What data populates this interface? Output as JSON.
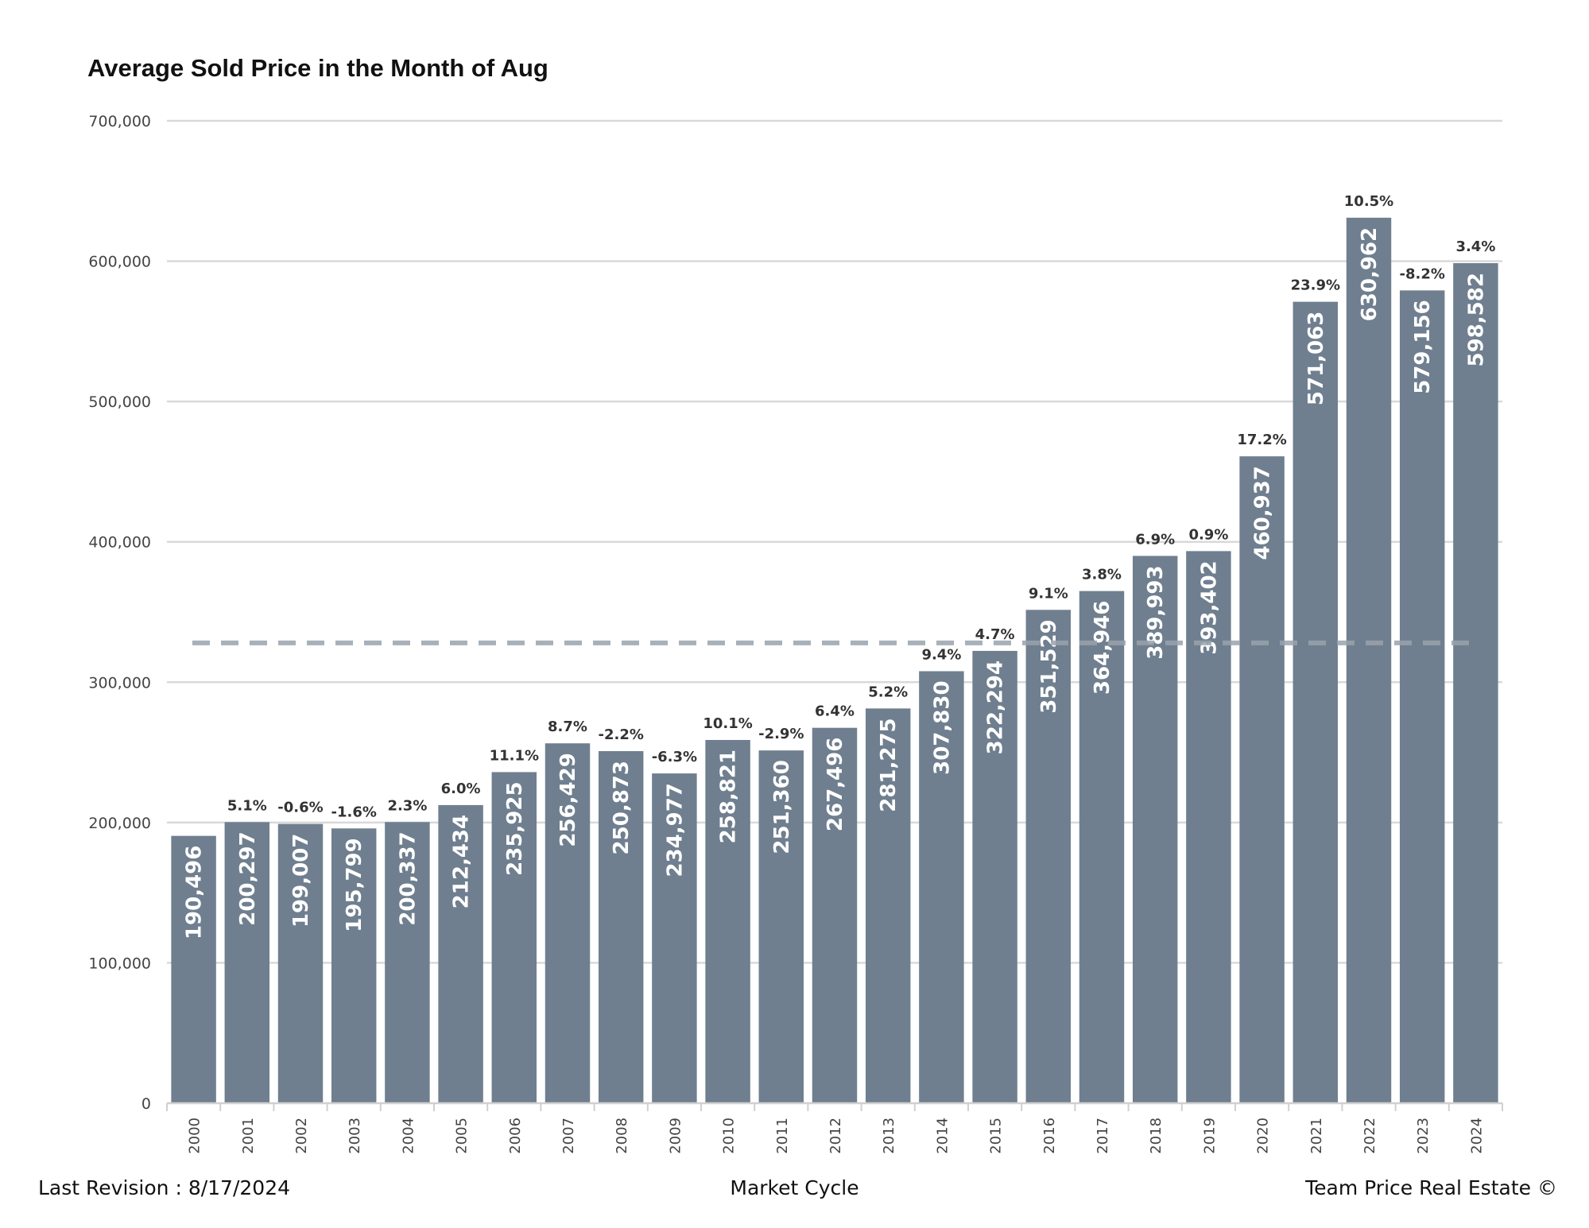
{
  "chart_data": {
    "type": "bar",
    "title": "Average Sold Price in the Month of Aug",
    "categories": [
      "2000",
      "2001",
      "2002",
      "2003",
      "2004",
      "2005",
      "2006",
      "2007",
      "2008",
      "2009",
      "2010",
      "2011",
      "2012",
      "2013",
      "2014",
      "2015",
      "2016",
      "2017",
      "2018",
      "2019",
      "2020",
      "2021",
      "2022",
      "2023",
      "2024"
    ],
    "values": [
      190496,
      200297,
      199007,
      195799,
      200337,
      212434,
      235925,
      256429,
      250873,
      234977,
      258821,
      251360,
      267496,
      281275,
      307830,
      322294,
      351529,
      364946,
      389993,
      393402,
      460937,
      571063,
      630962,
      579156,
      598582
    ],
    "value_labels": [
      "190,496",
      "200,297",
      "199,007",
      "195,799",
      "200,337",
      "212,434",
      "235,925",
      "256,429",
      "250,873",
      "234,977",
      "258,821",
      "251,360",
      "267,496",
      "281,275",
      "307,830",
      "322,294",
      "351,529",
      "364,946",
      "389,993",
      "393,402",
      "460,937",
      "571,063",
      "630,962",
      "579,156",
      "598,582"
    ],
    "change_labels": [
      "",
      "5.1%",
      "-0.6%",
      "-1.6%",
      "2.3%",
      "6.0%",
      "11.1%",
      "8.7%",
      "-2.2%",
      "-6.3%",
      "10.1%",
      "-2.9%",
      "6.4%",
      "5.2%",
      "9.4%",
      "4.7%",
      "9.1%",
      "3.8%",
      "6.9%",
      "0.9%",
      "17.2%",
      "23.9%",
      "10.5%",
      "-8.2%",
      "3.4%"
    ],
    "ylim": [
      0,
      700000
    ],
    "yticks": [
      0,
      100000,
      200000,
      300000,
      400000,
      500000,
      600000,
      700000
    ],
    "ytick_labels": [
      "0",
      "100,000",
      "200,000",
      "300,000",
      "400,000",
      "500,000",
      "600,000",
      "700,000"
    ],
    "average_line_value": 328000,
    "grid": true,
    "bar_color": "#6f7f8f",
    "average_line_color": "#9aa3ad",
    "gridline_color": "#d9d9d9"
  },
  "footer": {
    "left": "Last Revision : 8/17/2024",
    "center": "Market Cycle",
    "right": "Team Price Real Estate ©"
  }
}
